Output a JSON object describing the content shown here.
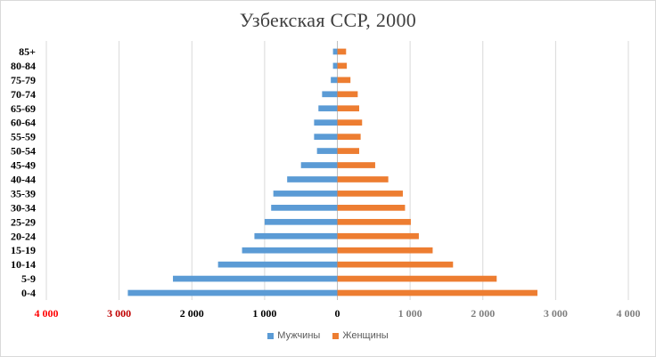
{
  "chart_data": {
    "type": "bar",
    "orientation": "horizontal-population-pyramid",
    "title": "Узбекская ССР, 2000",
    "categories": [
      "85+",
      "80-84",
      "75-79",
      "70-74",
      "65-69",
      "60-64",
      "55-59",
      "50-54",
      "45-49",
      "40-44",
      "35-39",
      "30-34",
      "25-29",
      "20-24",
      "15-19",
      "10-14",
      "5-9",
      "0-4"
    ],
    "series": [
      {
        "name": "Мужчины",
        "color": "#5b9bd5",
        "side": "left",
        "values": [
          60,
          60,
          90,
          210,
          260,
          320,
          320,
          280,
          500,
          690,
          880,
          910,
          1000,
          1140,
          1310,
          1640,
          2260,
          2880
        ]
      },
      {
        "name": "Женщины",
        "color": "#ed7d31",
        "side": "right",
        "values": [
          120,
          130,
          180,
          280,
          300,
          340,
          320,
          300,
          520,
          700,
          900,
          930,
          1010,
          1120,
          1310,
          1590,
          2190,
          2750
        ]
      }
    ],
    "xlim": [
      -4000,
      4000
    ],
    "x_ticks": [
      {
        "value": -4000,
        "label": "4 000",
        "color": "#ff0000"
      },
      {
        "value": -3000,
        "label": "3 000",
        "color": "#c00000"
      },
      {
        "value": -2000,
        "label": "2 000",
        "color": "#000000"
      },
      {
        "value": -1000,
        "label": "1 000",
        "color": "#000000"
      },
      {
        "value": 0,
        "label": "0",
        "color": "#000000"
      },
      {
        "value": 1000,
        "label": "1 000",
        "color": "#7f7f7f"
      },
      {
        "value": 2000,
        "label": "2 000",
        "color": "#7f7f7f"
      },
      {
        "value": 3000,
        "label": "3 000",
        "color": "#7f7f7f"
      },
      {
        "value": 4000,
        "label": "4 000",
        "color": "#7f7f7f"
      }
    ],
    "grid": true,
    "legend_position": "bottom"
  }
}
